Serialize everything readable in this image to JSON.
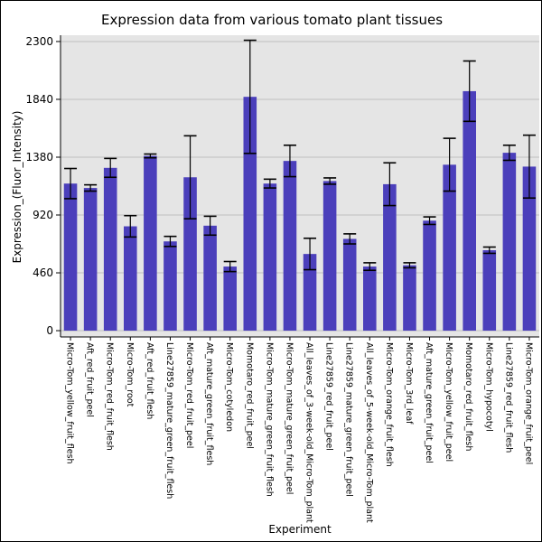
{
  "chart_data": {
    "type": "bar",
    "title": "Expression data from various tomato plant tissues",
    "xlabel": "Experiment",
    "ylabel": "Expression_(Fluor_Intensity)",
    "ylim": [
      -50,
      2350
    ],
    "yticks": [
      0,
      460,
      920,
      1380,
      1840,
      2300
    ],
    "grid": true,
    "bar_color": "#4b3fbb",
    "plot_background": "#e5e5e5",
    "grid_color": "#bfbfbf",
    "categories": [
      "Micro-Tom_yellow_fruit_flesh",
      "Aft_red_fruit_peel",
      "Micro-Tom_red_fruit_flesh",
      "Micro-Tom_root",
      "Aft_red_fruit_flesh",
      "Line27859_mature_green_fruit_flesh",
      "Micro-Tom_red_fruit_peel",
      "Aft_mature_green_fruit_flesh",
      "Micro-Tom_cotyledon",
      "Momotaro_red_fruit_peel",
      "Micro-Tom_mature_green_fruit_flesh",
      "Micro-Tom_mature_green_fruit_peel",
      "All_leaves_of_3-week-old_Micro-Tom_plant",
      "Line27859_red_fruit_peel",
      "Line27859_mature_green_fruit_peel",
      "All_leaves_of_5-week-old_Micro-Tom_plant",
      "Micro-Tom_orange_fruit_flesh",
      "Micro-Tom_3rd_leaf",
      "Aft_mature_green_fruit_peel",
      "Micro-Tom_yellow_fruit_peel",
      "Momotaro_red_fruit_flesh",
      "Micro-Tom_hypocotyl",
      "Line27859_red_fruit_flesh",
      "Micro-Tom_orange_fruit_peel"
    ],
    "values": [
      1170,
      1135,
      1295,
      830,
      1390,
      710,
      1220,
      835,
      510,
      1860,
      1170,
      1350,
      610,
      1190,
      730,
      510,
      1165,
      520,
      875,
      1320,
      1905,
      640,
      1415,
      1305
    ],
    "error": [
      120,
      25,
      75,
      85,
      15,
      40,
      330,
      75,
      40,
      450,
      35,
      125,
      125,
      25,
      40,
      30,
      170,
      20,
      30,
      210,
      240,
      25,
      60,
      250
    ]
  }
}
